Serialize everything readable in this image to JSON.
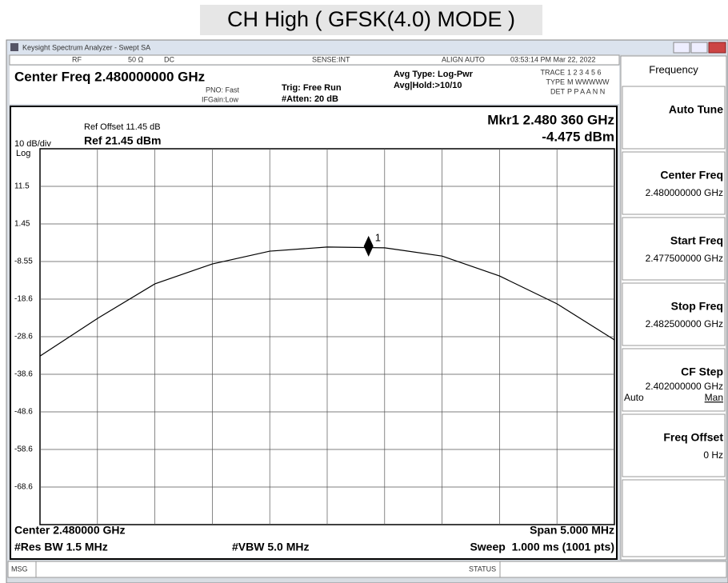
{
  "title": "CH High ( GFSK(4.0) MODE )",
  "window": {
    "title": "Keysight Spectrum Analyzer - Swept SA",
    "status": {
      "rf": "RF",
      "impedance": "50 Ω",
      "coupling": "DC",
      "sense": "SENSE:INT",
      "align": "ALIGN AUTO",
      "datetime": "03:53:14 PM Mar 22, 2022"
    },
    "header": {
      "center_freq": "Center Freq 2.480000000 GHz",
      "pno": "PNO: Fast",
      "ifgain": "IFGain:Low",
      "trig": "Trig: Free Run",
      "atten": "#Atten: 20 dB",
      "avg_type": "Avg Type: Log-Pwr",
      "avg_hold": "Avg|Hold:>10/10",
      "trace_label": "TRACE",
      "trace": "1 2 3 4 5 6",
      "type_label": "TYPE",
      "type": "M WWWWW",
      "det_label": "DET",
      "det": "P P A A N N"
    },
    "plot": {
      "ref_offset": "Ref Offset 11.45 dB",
      "scale": "10 dB/div",
      "ref_level": "Ref 21.45 dBm",
      "log": "Log",
      "marker_freq": "Mkr1 2.480 360 GHz",
      "marker_level": "-4.475 dBm"
    },
    "footer": {
      "center": "Center 2.480000 GHz",
      "span": "Span 5.000 MHz",
      "rbw": "#Res BW 1.5 MHz",
      "vbw": "#VBW 5.0 MHz",
      "sweep": "Sweep  1.000 ms (1001 pts)"
    },
    "statusbar": {
      "msg": "MSG",
      "status": "STATUS"
    }
  },
  "softkeys": {
    "menu": "Frequency",
    "keys": [
      {
        "label": "Auto Tune"
      },
      {
        "label": "Center Freq",
        "value": "2.480000000 GHz"
      },
      {
        "label": "Start Freq",
        "value": "2.477500000 GHz"
      },
      {
        "label": "Stop Freq",
        "value": "2.482500000 GHz"
      },
      {
        "label": "CF Step",
        "value": "2.402000000 GHz",
        "auto": "Auto",
        "man": "Man"
      },
      {
        "label": "Freq Offset",
        "value": "0 Hz"
      }
    ]
  },
  "chart_data": {
    "type": "line",
    "x": [
      2.4775,
      2.478,
      2.4785,
      2.479,
      2.4795,
      2.48,
      2.4805,
      2.481,
      2.4815,
      2.482,
      2.4825
    ],
    "series": [
      {
        "color": "#000000",
        "values": [
          -33.7,
          -23.7,
          -14.5,
          -9.2,
          -5.8,
          -4.7,
          -4.9,
          -7.1,
          -12.4,
          -19.8,
          -29.4
        ]
      }
    ],
    "marker": {
      "x": 2.48036,
      "y": -4.475,
      "label": "1"
    },
    "xlim": [
      2.4775,
      2.4825
    ],
    "ylim": [
      -78.55,
      21.45
    ],
    "yticks": [
      {
        "value": 11.45,
        "label": "11.5"
      },
      1.45,
      -8.55,
      {
        "value": -18.55,
        "label": "-18.6"
      },
      {
        "value": -28.55,
        "label": "-28.6"
      },
      {
        "value": -38.55,
        "label": "-38.6"
      },
      {
        "value": -48.55,
        "label": "-48.6"
      },
      {
        "value": -58.55,
        "label": "-58.6"
      },
      {
        "value": -68.55,
        "label": "-68.6"
      }
    ],
    "grid": true
  }
}
